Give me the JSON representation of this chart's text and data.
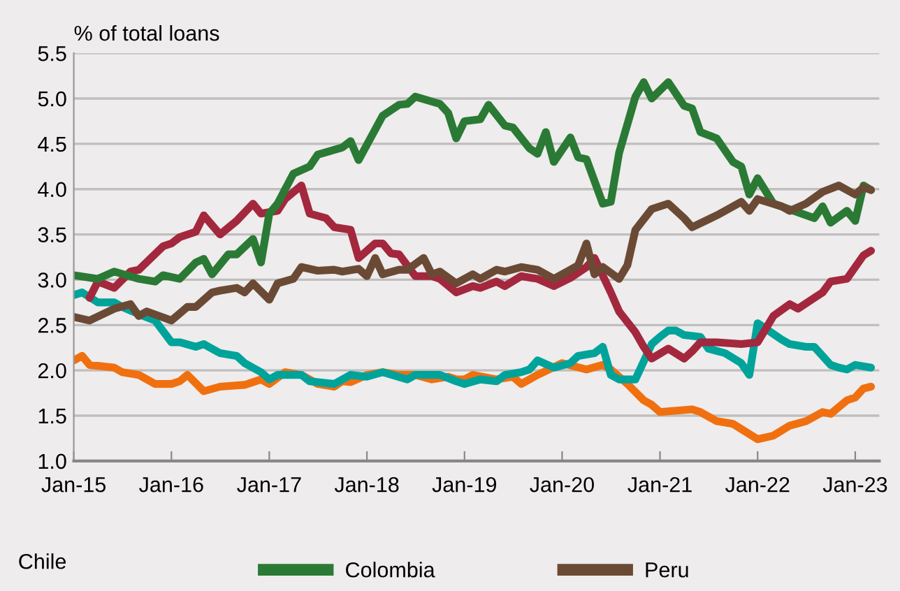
{
  "chart_data": {
    "type": "line",
    "ylabel": "% of total loans",
    "annotations": [
      "Chile"
    ],
    "xlim": [
      "2015-01",
      "2023-04"
    ],
    "xticks": [
      {
        "value": "2015-01",
        "label": "Jan-15"
      },
      {
        "value": "2016-01",
        "label": "Jan-16"
      },
      {
        "value": "2017-01",
        "label": "Jan-17"
      },
      {
        "value": "2018-01",
        "label": "Jan-18"
      },
      {
        "value": "2019-01",
        "label": "Jan-19"
      },
      {
        "value": "2020-01",
        "label": "Jan-20"
      },
      {
        "value": "2021-01",
        "label": "Jan-21"
      },
      {
        "value": "2022-01",
        "label": "Jan-22"
      },
      {
        "value": "2023-01",
        "label": "Jan-23"
      }
    ],
    "ylim": [
      1.0,
      5.5
    ],
    "yticks": [
      {
        "value": 1.0,
        "label": "1.0"
      },
      {
        "value": 1.5,
        "label": "1.5"
      },
      {
        "value": 2.0,
        "label": "2.0"
      },
      {
        "value": 2.5,
        "label": "2.5"
      },
      {
        "value": 3.0,
        "label": "3.0"
      },
      {
        "value": 3.5,
        "label": "3.5"
      },
      {
        "value": 4.0,
        "label": "4.0"
      },
      {
        "value": 4.5,
        "label": "4.5"
      },
      {
        "value": 5.0,
        "label": "5.0"
      },
      {
        "value": 5.5,
        "label": "5.5"
      }
    ],
    "grid": "y",
    "legend": "bottom",
    "marker": "none",
    "line_style": "solid",
    "series": [
      {
        "color": "#f07010",
        "x": [
          "2015-01",
          "2015-02",
          "2015-03",
          "2015-06",
          "2015-07",
          "2015-09",
          "2015-11",
          "2016-01",
          "2016-02",
          "2016-03",
          "2016-05",
          "2016-07",
          "2016-10",
          "2016-12",
          "2017-01",
          "2017-03",
          "2017-05",
          "2017-07",
          "2017-09",
          "2017-10",
          "2017-11",
          "2018-01",
          "2018-03",
          "2018-05",
          "2018-07",
          "2018-09",
          "2018-11",
          "2018-12",
          "2019-01",
          "2019-02",
          "2019-05",
          "2019-07",
          "2019-08",
          "2019-10",
          "2020-01",
          "2020-04",
          "2020-06",
          "2020-07",
          "2020-09",
          "2020-11",
          "2020-12",
          "2021-01",
          "2021-05",
          "2021-06",
          "2021-08",
          "2021-10",
          "2022-01",
          "2022-03",
          "2022-05",
          "2022-07",
          "2022-09",
          "2022-10",
          "2022-12",
          "2023-01",
          "2023-02",
          "2023-03"
        ],
        "values": [
          2.11,
          2.16,
          2.06,
          2.03,
          1.98,
          1.95,
          1.85,
          1.85,
          1.88,
          1.95,
          1.77,
          1.82,
          1.84,
          1.9,
          1.85,
          1.98,
          1.95,
          1.85,
          1.82,
          1.88,
          1.87,
          1.95,
          1.98,
          1.95,
          1.95,
          1.9,
          1.93,
          1.9,
          1.9,
          1.95,
          1.9,
          1.93,
          1.85,
          1.95,
          2.08,
          2.01,
          2.06,
          2.01,
          1.85,
          1.67,
          1.62,
          1.54,
          1.57,
          1.54,
          1.44,
          1.41,
          1.24,
          1.28,
          1.39,
          1.44,
          1.54,
          1.52,
          1.67,
          1.7,
          1.8,
          1.82
        ]
      },
      {
        "color": "#00a39a",
        "x": [
          "2015-01",
          "2015-02",
          "2015-04",
          "2015-06",
          "2015-07",
          "2015-09",
          "2015-11",
          "2016-01",
          "2016-02",
          "2016-04",
          "2016-05",
          "2016-07",
          "2016-09",
          "2016-10",
          "2016-12",
          "2017-01",
          "2017-02",
          "2017-05",
          "2017-06",
          "2017-09",
          "2017-11",
          "2018-01",
          "2018-03",
          "2018-06",
          "2018-07",
          "2018-10",
          "2018-12",
          "2019-01",
          "2019-03",
          "2019-05",
          "2019-06",
          "2019-08",
          "2019-09",
          "2019-10",
          "2019-12",
          "2020-02",
          "2020-03",
          "2020-05",
          "2020-06",
          "2020-07",
          "2020-08",
          "2020-10",
          "2020-12",
          "2021-01",
          "2021-02",
          "2021-03",
          "2021-04",
          "2021-06",
          "2021-07",
          "2021-09",
          "2021-11",
          "2021-12",
          "2022-01",
          "2022-04",
          "2022-05",
          "2022-07",
          "2022-08",
          "2022-10",
          "2022-11",
          "2022-12",
          "2023-01",
          "2023-03"
        ],
        "values": [
          2.83,
          2.86,
          2.75,
          2.75,
          2.7,
          2.62,
          2.55,
          2.31,
          2.31,
          2.26,
          2.29,
          2.19,
          2.16,
          2.08,
          1.98,
          1.9,
          1.95,
          1.95,
          1.88,
          1.85,
          1.95,
          1.93,
          1.98,
          1.9,
          1.95,
          1.95,
          1.88,
          1.85,
          1.9,
          1.88,
          1.95,
          1.98,
          2.01,
          2.11,
          2.03,
          2.08,
          2.16,
          2.19,
          2.26,
          1.95,
          1.9,
          1.9,
          2.29,
          2.37,
          2.44,
          2.44,
          2.39,
          2.37,
          2.24,
          2.19,
          2.08,
          1.95,
          2.52,
          2.34,
          2.29,
          2.26,
          2.26,
          2.06,
          2.03,
          2.01,
          2.06,
          2.03
        ]
      },
      {
        "color": "#a3283e",
        "x": [
          "2015-03",
          "2015-04",
          "2015-06",
          "2015-08",
          "2015-09",
          "2015-12",
          "2016-01",
          "2016-02",
          "2016-04",
          "2016-05",
          "2016-07",
          "2016-09",
          "2016-11",
          "2016-12",
          "2017-02",
          "2017-03",
          "2017-05",
          "2017-06",
          "2017-08",
          "2017-09",
          "2017-11",
          "2017-12",
          "2018-02",
          "2018-03",
          "2018-04",
          "2018-05",
          "2018-07",
          "2018-09",
          "2018-10",
          "2018-12",
          "2019-02",
          "2019-03",
          "2019-05",
          "2019-06",
          "2019-08",
          "2019-10",
          "2019-12",
          "2020-02",
          "2020-04",
          "2020-05",
          "2020-07",
          "2020-08",
          "2020-10",
          "2020-11",
          "2020-12",
          "2021-02",
          "2021-04",
          "2021-05",
          "2021-06",
          "2021-08",
          "2021-11",
          "2022-01",
          "2022-03",
          "2022-05",
          "2022-06",
          "2022-08",
          "2022-09",
          "2022-10",
          "2022-12",
          "2023-02",
          "2023-03"
        ],
        "values": [
          2.8,
          2.98,
          2.91,
          3.09,
          3.11,
          3.37,
          3.4,
          3.47,
          3.53,
          3.71,
          3.5,
          3.65,
          3.84,
          3.73,
          3.76,
          3.89,
          4.04,
          3.73,
          3.68,
          3.58,
          3.55,
          3.24,
          3.4,
          3.4,
          3.29,
          3.28,
          3.04,
          3.04,
          3.01,
          2.86,
          2.93,
          2.91,
          2.98,
          2.93,
          3.04,
          3.01,
          2.93,
          3.02,
          3.14,
          3.24,
          2.86,
          2.65,
          2.42,
          2.26,
          2.13,
          2.24,
          2.13,
          2.21,
          2.31,
          2.31,
          2.29,
          2.31,
          2.6,
          2.73,
          2.68,
          2.8,
          2.86,
          2.98,
          3.01,
          3.27,
          3.32
        ]
      },
      {
        "name": "Colombia",
        "color": "#2a7a35",
        "x": [
          "2015-01",
          "2015-04",
          "2015-06",
          "2015-09",
          "2015-11",
          "2015-12",
          "2016-02",
          "2016-04",
          "2016-05",
          "2016-06",
          "2016-08",
          "2016-09",
          "2016-11",
          "2016-12",
          "2017-01",
          "2017-02",
          "2017-04",
          "2017-06",
          "2017-07",
          "2017-10",
          "2017-11",
          "2017-12",
          "2018-03",
          "2018-05",
          "2018-06",
          "2018-07",
          "2018-10",
          "2018-11",
          "2018-12",
          "2019-01",
          "2019-03",
          "2019-04",
          "2019-06",
          "2019-07",
          "2019-09",
          "2019-10",
          "2019-11",
          "2019-12",
          "2020-02",
          "2020-03",
          "2020-04",
          "2020-06",
          "2020-07",
          "2020-08",
          "2020-10",
          "2020-11",
          "2020-12",
          "2021-02",
          "2021-04",
          "2021-05",
          "2021-06",
          "2021-08",
          "2021-10",
          "2021-11",
          "2021-12",
          "2022-01",
          "2022-03",
          "2022-08",
          "2022-09",
          "2022-10",
          "2022-12",
          "2023-01",
          "2023-02",
          "2023-03"
        ],
        "values": [
          3.05,
          3.01,
          3.09,
          3.01,
          2.98,
          3.05,
          3.01,
          3.19,
          3.23,
          3.06,
          3.28,
          3.28,
          3.45,
          3.19,
          3.73,
          3.84,
          4.17,
          4.25,
          4.38,
          4.46,
          4.53,
          4.32,
          4.81,
          4.93,
          4.94,
          5.02,
          4.94,
          4.84,
          4.56,
          4.75,
          4.77,
          4.93,
          4.7,
          4.68,
          4.45,
          4.39,
          4.63,
          4.3,
          4.57,
          4.35,
          4.33,
          3.84,
          3.86,
          4.4,
          5.02,
          5.18,
          5.0,
          5.18,
          4.92,
          4.89,
          4.63,
          4.56,
          4.3,
          4.25,
          3.94,
          4.12,
          3.84,
          3.68,
          3.81,
          3.63,
          3.76,
          3.65,
          4.04,
          3.99
        ]
      },
      {
        "name": "Peru",
        "color": "#6b4a35",
        "x": [
          "2015-01",
          "2015-03",
          "2015-06",
          "2015-08",
          "2015-09",
          "2015-10",
          "2016-01",
          "2016-03",
          "2016-04",
          "2016-06",
          "2016-07",
          "2016-09",
          "2016-10",
          "2016-11",
          "2017-01",
          "2017-02",
          "2017-04",
          "2017-05",
          "2017-07",
          "2017-09",
          "2017-10",
          "2017-12",
          "2018-01",
          "2018-02",
          "2018-03",
          "2018-05",
          "2018-06",
          "2018-08",
          "2018-09",
          "2018-10",
          "2018-12",
          "2019-02",
          "2019-03",
          "2019-05",
          "2019-06",
          "2019-08",
          "2019-10",
          "2019-12",
          "2020-02",
          "2020-03",
          "2020-04",
          "2020-05",
          "2020-06",
          "2020-08",
          "2020-09",
          "2020-10",
          "2020-12",
          "2021-02",
          "2021-04",
          "2021-05",
          "2021-08",
          "2021-09",
          "2021-11",
          "2021-12",
          "2022-01",
          "2022-04",
          "2022-05",
          "2022-07",
          "2022-09",
          "2022-11",
          "2023-01",
          "2023-02",
          "2023-03"
        ],
        "values": [
          2.59,
          2.55,
          2.68,
          2.73,
          2.6,
          2.65,
          2.55,
          2.7,
          2.7,
          2.86,
          2.88,
          2.91,
          2.86,
          2.96,
          2.78,
          2.96,
          3.01,
          3.14,
          3.1,
          3.11,
          3.09,
          3.12,
          3.04,
          3.24,
          3.06,
          3.11,
          3.11,
          3.24,
          3.06,
          3.09,
          2.96,
          3.06,
          3.01,
          3.11,
          3.09,
          3.14,
          3.11,
          3.01,
          3.11,
          3.16,
          3.4,
          3.06,
          3.14,
          3.01,
          3.16,
          3.55,
          3.78,
          3.84,
          3.68,
          3.58,
          3.71,
          3.76,
          3.86,
          3.76,
          3.89,
          3.81,
          3.76,
          3.84,
          3.97,
          4.04,
          3.94,
          4.02,
          3.99
        ]
      }
    ]
  }
}
